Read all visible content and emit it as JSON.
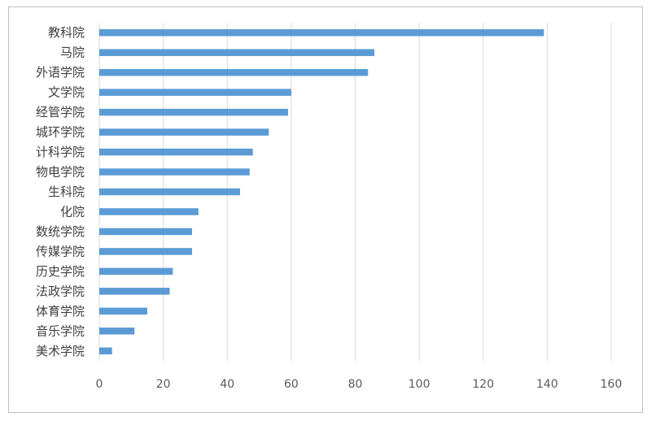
{
  "chart_data": {
    "type": "bar",
    "orientation": "horizontal",
    "categories": [
      "教科院",
      "马院",
      "外语学院",
      "文学院",
      "经管学院",
      "城环学院",
      "计科学院",
      "物电学院",
      "生科院",
      "化院",
      "数统学院",
      "传媒学院",
      "历史学院",
      "法政学院",
      "体育学院",
      "音乐学院",
      "美术学院"
    ],
    "values": [
      139,
      86,
      84,
      60,
      59,
      53,
      48,
      47,
      44,
      31,
      29,
      29,
      23,
      22,
      15,
      11,
      4
    ],
    "xlim": [
      0,
      160
    ],
    "xticks": [
      0,
      20,
      40,
      60,
      80,
      100,
      120,
      140,
      160
    ],
    "grid": "vertical",
    "legend": "none",
    "title": "",
    "xlabel": "",
    "ylabel": "",
    "colors": {
      "bar": "#5b9bd5",
      "grid": "#d9d9d9",
      "text": "#404040"
    }
  }
}
